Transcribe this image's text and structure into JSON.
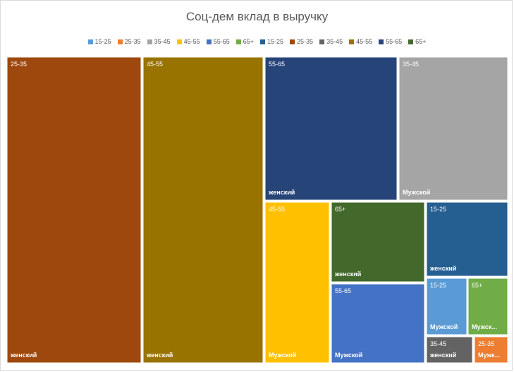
{
  "chart_data": {
    "type": "treemap",
    "title": "Соц-дем вклад в выручку",
    "legend": {
      "placement": "top",
      "entries": [
        {
          "label": "15-25",
          "color": "#5b9bd5"
        },
        {
          "label": "25-35",
          "color": "#ed7d31"
        },
        {
          "label": "35-45",
          "color": "#a5a5a5"
        },
        {
          "label": "45-55",
          "color": "#ffc000"
        },
        {
          "label": "55-65",
          "color": "#4472c4"
        },
        {
          "label": "65+",
          "color": "#70ad47"
        },
        {
          "label": "15-25",
          "color": "#255e91"
        },
        {
          "label": "25-35",
          "color": "#9e480e"
        },
        {
          "label": "35-45",
          "color": "#636363"
        },
        {
          "label": "45-55",
          "color": "#997300"
        },
        {
          "label": "55-65",
          "color": "#264478"
        },
        {
          "label": "65+",
          "color": "#43682b"
        }
      ]
    },
    "series": [
      {
        "category": "женский",
        "age": "25-35",
        "value": 19.8,
        "color": "#9e480e"
      },
      {
        "category": "женский",
        "age": "45-55",
        "value": 17.9,
        "color": "#997300"
      },
      {
        "category": "женский",
        "age": "55-65",
        "value": 11.2,
        "color": "#264478"
      },
      {
        "category": "Мужской",
        "age": "35-45",
        "value": 9.9,
        "color": "#a5a5a5"
      },
      {
        "category": "Мужской",
        "age": "45-55",
        "value": 7.1,
        "color": "#ffc000"
      },
      {
        "category": "женский",
        "age": "65+",
        "value": 6.7,
        "color": "#43682b"
      },
      {
        "category": "Мужской",
        "age": "55-65",
        "value": 8.2,
        "color": "#4472c4"
      },
      {
        "category": "женский",
        "age": "15-25",
        "value": 4.0,
        "color": "#255e91"
      },
      {
        "category": "Мужской",
        "age": "15-25",
        "value": 1.9,
        "color": "#5b9bd5"
      },
      {
        "category": "Мужской",
        "age": "65+",
        "value": 1.8,
        "color": "#70ad47"
      },
      {
        "category": "женский",
        "age": "35-45",
        "value": 1.1,
        "color": "#636363"
      },
      {
        "category": "Мужской",
        "age": "25-35",
        "value": 0.8,
        "color": "#ed7d31"
      }
    ],
    "truncated_labels": {
      "Мужской:65+": "Мужск...",
      "Мужской:25-35": "Мужк..."
    }
  }
}
